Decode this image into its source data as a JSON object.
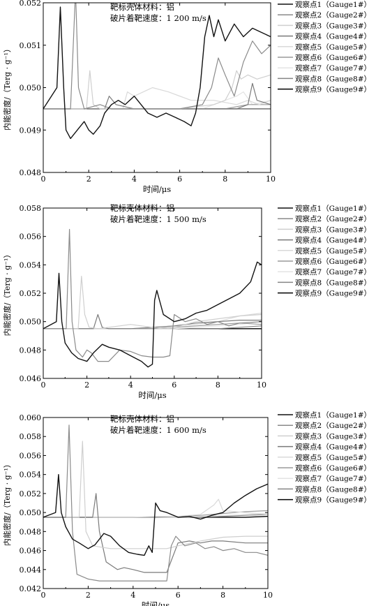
{
  "legend_labels": [
    "观察点1（Gauge1#）",
    "观察点2（Gauge2#）",
    "观察点3（Gauge3#）",
    "观察点4（Gauge4#）",
    "观察点5（Gauge5#）",
    "观察点6（Gauge6#）",
    "观察点7（Gauge7#）",
    "观察点8（Gauge8#）",
    "观察点9（Gauge9#）"
  ],
  "series_colors": [
    "#111111",
    "#8a8a8a",
    "#cfcfcf",
    "#7a7a7a",
    "#d9d9d9",
    "#9a9a9a",
    "#e3e3e3",
    "#858585",
    "#000000"
  ],
  "chart_data": [
    {
      "type": "line",
      "annotation_line1": "靶标壳体材料：铝",
      "annotation_line2": "破片着靶速度：1 200 m/s",
      "ylabel": "内能密度/（Terg · g⁻¹）",
      "xlabel": "时间/μs",
      "xlim": [
        0,
        10
      ],
      "ylim": [
        0.048,
        0.052
      ],
      "xticks": [
        0,
        2,
        4,
        6,
        8,
        10
      ],
      "yticks": [
        "0.048",
        "0.049",
        "0.050",
        "0.051",
        "0.052"
      ],
      "series": [
        {
          "x": [
            0,
            0.6,
            0.75,
            0.9,
            1.0,
            1.2,
            1.5,
            1.8,
            2.0,
            2.2,
            2.5,
            2.7,
            3.0,
            3.3,
            3.6,
            4.0,
            4.3,
            4.6,
            5.0,
            5.4,
            5.8,
            6.2,
            6.5,
            6.7,
            6.9,
            7.1,
            7.3,
            7.5,
            7.7,
            8.0,
            8.4,
            8.8,
            9.2,
            9.6,
            10.0
          ],
          "y": [
            0.0495,
            0.05,
            0.0519,
            0.05,
            0.049,
            0.0488,
            0.049,
            0.0492,
            0.049,
            0.0489,
            0.0491,
            0.0494,
            0.0496,
            0.0497,
            0.0496,
            0.0498,
            0.0496,
            0.0494,
            0.0493,
            0.0494,
            0.0493,
            0.0492,
            0.0491,
            0.0494,
            0.05,
            0.0512,
            0.0517,
            0.0512,
            0.0516,
            0.0511,
            0.0515,
            0.0512,
            0.0514,
            0.0513,
            0.0512
          ]
        },
        {
          "x": [
            0,
            1.2,
            1.32,
            1.42,
            1.55,
            1.8,
            2.5,
            3.0,
            4.0,
            5.0,
            6.0,
            7.0,
            7.4,
            7.7,
            8.0,
            8.4,
            8.8,
            9.2,
            9.6,
            10.0
          ],
          "y": [
            0.0495,
            0.0495,
            0.051,
            0.0523,
            0.05,
            0.0495,
            0.0496,
            0.0495,
            0.0495,
            0.0495,
            0.0495,
            0.0496,
            0.05,
            0.0507,
            0.0503,
            0.0498,
            0.0506,
            0.0511,
            0.0508,
            0.051
          ]
        },
        {
          "x": [
            0,
            1.9,
            2.05,
            2.2,
            2.5,
            3.0,
            4.0,
            6.0,
            7.5,
            8.0,
            8.3,
            8.5,
            8.7,
            9.0,
            9.4,
            10.0
          ],
          "y": [
            0.0495,
            0.0495,
            0.0504,
            0.0496,
            0.0495,
            0.0495,
            0.0495,
            0.0495,
            0.0496,
            0.0497,
            0.05,
            0.0504,
            0.0502,
            0.0503,
            0.0502,
            0.0503
          ]
        },
        {
          "x": [
            0,
            2.7,
            2.9,
            3.2,
            4.0,
            5.0,
            7.0,
            8.5,
            9.0,
            9.2,
            9.4,
            10.0
          ],
          "y": [
            0.0495,
            0.0495,
            0.0498,
            0.0496,
            0.0495,
            0.0495,
            0.0495,
            0.0495,
            0.0496,
            0.0501,
            0.0497,
            0.0496
          ]
        },
        {
          "x": [
            0,
            3.5,
            3.7,
            4.0,
            4.8,
            5.5,
            6.5,
            7.5,
            8.5,
            9.0,
            9.5,
            10.0
          ],
          "y": [
            0.0495,
            0.0495,
            0.0499,
            0.0498,
            0.05,
            0.0499,
            0.0497,
            0.0497,
            0.0496,
            0.0497,
            0.0496,
            0.0497
          ]
        },
        {
          "x": [
            0,
            4.5,
            5.0,
            6.0,
            7.0,
            8.0,
            9.0,
            10.0
          ],
          "y": [
            0.0495,
            0.0495,
            0.0495,
            0.0495,
            0.0495,
            0.0495,
            0.0496,
            0.0496
          ]
        },
        {
          "x": [
            0,
            5.0,
            6.0,
            7.0,
            7.5,
            8.0,
            8.5,
            8.8,
            9.2,
            10.0
          ],
          "y": [
            0.0495,
            0.0495,
            0.0495,
            0.0495,
            0.0496,
            0.0497,
            0.0498,
            0.0499,
            0.0496,
            0.0497
          ]
        },
        {
          "x": [
            0,
            6.0,
            7.0,
            8.0,
            9.0,
            10.0
          ],
          "y": [
            0.0495,
            0.0495,
            0.0495,
            0.0495,
            0.0495,
            0.0495
          ]
        },
        {
          "x": [
            0,
            7.0,
            8.0,
            9.0,
            10.0
          ],
          "y": [
            0.0495,
            0.0495,
            0.0495,
            0.0495,
            0.0495
          ]
        }
      ]
    },
    {
      "type": "line",
      "annotation_line1": "靶标壳体材料：铝",
      "annotation_line2": "破片着靶速度：1 500 m/s",
      "ylabel": "内能密度/（Terg · g⁻¹）",
      "xlabel": "时间/μs",
      "xlim": [
        0,
        10
      ],
      "ylim": [
        0.046,
        0.058
      ],
      "xticks": [
        0,
        2,
        4,
        6,
        8,
        10
      ],
      "yticks": [
        "0.046",
        "0.048",
        "0.050",
        "0.052",
        "0.054",
        "0.056",
        "0.058"
      ],
      "series": [
        {
          "x": [
            0,
            0.6,
            0.72,
            0.85,
            1.0,
            1.3,
            1.6,
            2.0,
            2.3,
            2.7,
            3.0,
            3.5,
            4.0,
            4.5,
            4.8,
            5.0,
            5.1,
            5.2,
            5.5,
            6.0,
            6.5,
            7.0,
            7.5,
            8.0,
            8.5,
            9.0,
            9.5,
            9.8,
            10.0
          ],
          "y": [
            0.0495,
            0.05,
            0.0534,
            0.05,
            0.0485,
            0.0478,
            0.0474,
            0.0472,
            0.0478,
            0.0484,
            0.0482,
            0.048,
            0.0476,
            0.0472,
            0.0468,
            0.047,
            0.0515,
            0.0522,
            0.0505,
            0.05,
            0.0502,
            0.0506,
            0.0508,
            0.0512,
            0.0516,
            0.052,
            0.0528,
            0.0542,
            0.054
          ]
        },
        {
          "x": [
            0,
            1.05,
            1.2,
            1.32,
            1.5,
            1.8,
            2.0,
            2.2,
            2.5,
            3.0,
            3.5,
            4.0,
            4.5,
            5.0,
            5.5,
            5.8,
            6.0,
            6.5,
            7.0,
            7.5,
            8.0,
            8.5,
            9.0,
            10.0
          ],
          "y": [
            0.0495,
            0.0495,
            0.0565,
            0.05,
            0.048,
            0.0475,
            0.048,
            0.0478,
            0.0472,
            0.0472,
            0.048,
            0.0479,
            0.0476,
            0.0475,
            0.0475,
            0.0476,
            0.0505,
            0.05,
            0.0502,
            0.0498,
            0.05,
            0.0497,
            0.0499,
            0.05
          ]
        },
        {
          "x": [
            0,
            1.6,
            1.75,
            1.9,
            2.1,
            2.5,
            3.0,
            3.5,
            4.0,
            4.5,
            5.0,
            5.5,
            6.0,
            7.0,
            8.0,
            9.0,
            10.0
          ],
          "y": [
            0.0495,
            0.0495,
            0.0532,
            0.0505,
            0.0496,
            0.0495,
            0.0496,
            0.0497,
            0.0498,
            0.0497,
            0.0496,
            0.0495,
            0.0496,
            0.05,
            0.0502,
            0.0504,
            0.0505
          ]
        },
        {
          "x": [
            0,
            2.3,
            2.5,
            2.7,
            3.0,
            4.0,
            5.0,
            6.0,
            7.0,
            8.0,
            9.0,
            10.0
          ],
          "y": [
            0.0495,
            0.0495,
            0.0505,
            0.0496,
            0.0495,
            0.0495,
            0.0496,
            0.0497,
            0.0499,
            0.05,
            0.0501,
            0.0501
          ]
        },
        {
          "x": [
            0,
            3.0,
            4.0,
            5.0,
            6.0,
            7.0,
            8.0,
            9.0,
            10.0
          ],
          "y": [
            0.0495,
            0.0495,
            0.0495,
            0.0496,
            0.0497,
            0.0498,
            0.05,
            0.0504,
            0.0506
          ]
        },
        {
          "x": [
            0,
            4.0,
            5.0,
            6.0,
            7.0,
            8.0,
            9.0,
            10.0
          ],
          "y": [
            0.0495,
            0.0495,
            0.0495,
            0.0496,
            0.0497,
            0.0498,
            0.0499,
            0.0498
          ]
        },
        {
          "x": [
            0,
            5.0,
            6.0,
            7.0,
            8.0,
            9.0,
            10.0
          ],
          "y": [
            0.0495,
            0.0495,
            0.0495,
            0.0496,
            0.0497,
            0.0498,
            0.05
          ]
        },
        {
          "x": [
            0,
            6.0,
            7.0,
            8.0,
            9.0,
            10.0
          ],
          "y": [
            0.0495,
            0.0495,
            0.0495,
            0.0495,
            0.0496,
            0.0497
          ]
        },
        {
          "x": [
            0,
            7.0,
            8.0,
            9.0,
            10.0
          ],
          "y": [
            0.0495,
            0.0495,
            0.0495,
            0.0495,
            0.0495
          ]
        }
      ]
    },
    {
      "type": "line",
      "annotation_line1": "靶标壳体材料：铝",
      "annotation_line2": "破片着靶速度：1 600 m/s",
      "ylabel": "内能密度/（Terg · g⁻¹）",
      "xlabel": "时间/μs",
      "xlim": [
        0,
        10
      ],
      "ylim": [
        0.042,
        0.06
      ],
      "xticks": [
        0,
        2,
        4,
        6,
        8,
        10
      ],
      "yticks": [
        "0.042",
        "0.044",
        "0.046",
        "0.048",
        "0.050",
        "0.052",
        "0.054",
        "0.056",
        "0.058",
        "0.060"
      ],
      "series": [
        {
          "x": [
            0,
            0.55,
            0.68,
            0.8,
            1.0,
            1.3,
            1.6,
            2.0,
            2.3,
            2.7,
            3.0,
            3.4,
            3.8,
            4.2,
            4.5,
            4.7,
            4.85,
            5.0,
            5.2,
            5.5,
            6.0,
            6.5,
            7.0,
            7.5,
            8.0,
            8.5,
            9.0,
            9.5,
            10.0
          ],
          "y": [
            0.0495,
            0.05,
            0.054,
            0.05,
            0.0485,
            0.0472,
            0.0468,
            0.0462,
            0.0466,
            0.0478,
            0.0475,
            0.0465,
            0.0458,
            0.0456,
            0.0455,
            0.0465,
            0.0458,
            0.051,
            0.0502,
            0.05,
            0.0495,
            0.0496,
            0.0493,
            0.0497,
            0.05,
            0.051,
            0.0518,
            0.0525,
            0.053
          ]
        },
        {
          "x": [
            0,
            1.0,
            1.15,
            1.3,
            1.5,
            2.0,
            2.5,
            3.0,
            3.5,
            4.0,
            4.5,
            5.0,
            5.5,
            5.7,
            5.9,
            6.3,
            6.8,
            7.2,
            7.6,
            8.0,
            8.5,
            9.0,
            9.5,
            10.0
          ],
          "y": [
            0.0495,
            0.0495,
            0.0592,
            0.048,
            0.0435,
            0.043,
            0.0428,
            0.0428,
            0.0428,
            0.0428,
            0.0428,
            0.0428,
            0.0428,
            0.0465,
            0.0475,
            0.0465,
            0.0468,
            0.0462,
            0.0464,
            0.046,
            0.0462,
            0.0458,
            0.0458,
            0.0455
          ]
        },
        {
          "x": [
            0,
            1.6,
            1.75,
            1.9,
            2.2,
            3.0,
            3.5,
            4.0,
            4.5,
            5.0,
            5.5,
            6.0,
            7.0,
            8.0,
            9.0,
            10.0
          ],
          "y": [
            0.0495,
            0.0495,
            0.0575,
            0.048,
            0.0465,
            0.0462,
            0.0462,
            0.0462,
            0.0462,
            0.0462,
            0.0462,
            0.0465,
            0.047,
            0.0474,
            0.0475,
            0.0475
          ]
        },
        {
          "x": [
            0,
            2.2,
            2.35,
            2.5,
            2.8,
            3.3,
            3.6,
            4.0,
            4.5,
            5.0,
            5.5,
            6.0,
            6.5,
            7.0,
            7.5,
            8.0,
            9.0,
            10.0
          ],
          "y": [
            0.0495,
            0.0495,
            0.052,
            0.048,
            0.0448,
            0.044,
            0.0442,
            0.044,
            0.0437,
            0.0437,
            0.0437,
            0.0468,
            0.047,
            0.0468,
            0.047,
            0.047,
            0.0468,
            0.0468
          ]
        },
        {
          "x": [
            0,
            3.0,
            4.0,
            5.0,
            6.0,
            7.0,
            7.6,
            7.8,
            8.0,
            9.0,
            10.0
          ],
          "y": [
            0.0495,
            0.0495,
            0.0495,
            0.0496,
            0.0496,
            0.0498,
            0.0508,
            0.0514,
            0.0502,
            0.05,
            0.0498
          ]
        },
        {
          "x": [
            0,
            4.0,
            5.0,
            6.0,
            7.0,
            8.0,
            9.0,
            10.0
          ],
          "y": [
            0.0495,
            0.0495,
            0.0495,
            0.0496,
            0.0497,
            0.0499,
            0.0501,
            0.0502
          ]
        },
        {
          "x": [
            0,
            5.0,
            6.0,
            7.0,
            8.0,
            9.0,
            10.0
          ],
          "y": [
            0.0495,
            0.0495,
            0.0495,
            0.0496,
            0.0497,
            0.0498,
            0.0499
          ]
        },
        {
          "x": [
            0,
            6.0,
            7.0,
            8.0,
            9.0,
            10.0
          ],
          "y": [
            0.0495,
            0.0495,
            0.0495,
            0.0496,
            0.0497,
            0.0498
          ]
        },
        {
          "x": [
            0,
            7.0,
            8.0,
            9.0,
            10.0
          ],
          "y": [
            0.0495,
            0.0495,
            0.0495,
            0.0495,
            0.0496
          ]
        }
      ]
    }
  ]
}
